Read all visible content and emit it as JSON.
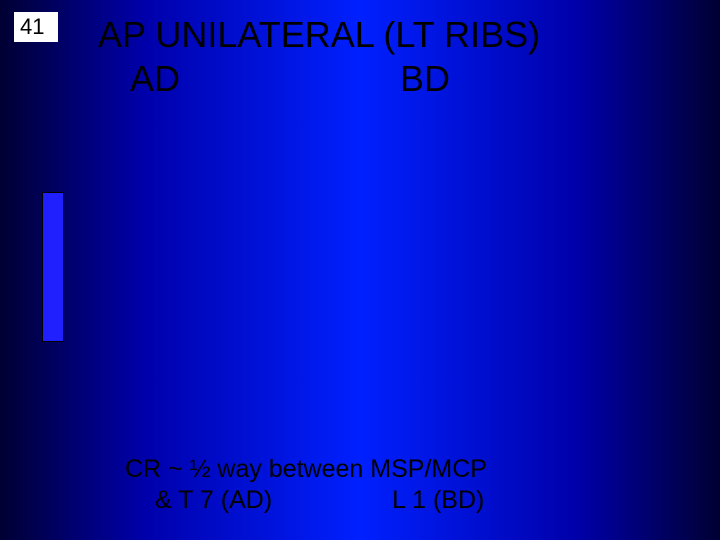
{
  "page_number": "41",
  "title": {
    "line1": "AP  UNILATERAL    (LT  RIBS)",
    "line2_left": "AD",
    "line2_right": "BD",
    "color": "#000000",
    "fontsize": 36
  },
  "bar": {
    "fill_color": "#2020ff",
    "border_color": "#000000",
    "width": 22,
    "height": 150
  },
  "bottom": {
    "line1": "CR  ~ ½ way between MSP/MCP",
    "line2a": "& T 7  (AD)",
    "line2b": "L 1  (BD)",
    "color": "#000000",
    "fontsize": 25
  },
  "background": {
    "gradient_colors": [
      "#000033",
      "#0000aa",
      "#0020ff",
      "#0000aa",
      "#000033"
    ]
  }
}
